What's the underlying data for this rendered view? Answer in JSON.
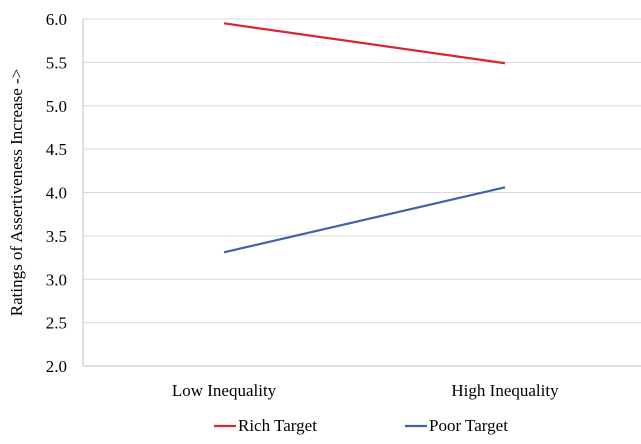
{
  "chart_data": {
    "type": "line",
    "title": "",
    "xlabel": "",
    "ylabel": "Ratings of Assertiveness Increase ->",
    "categories": [
      "Low Inequality",
      "High Inequality"
    ],
    "ylim": [
      2.0,
      6.0
    ],
    "yticks": [
      "2.0",
      "2.5",
      "3.0",
      "3.5",
      "4.0",
      "4.5",
      "5.0",
      "5.5",
      "6.0"
    ],
    "grid": true,
    "legend_position": "bottom",
    "series": [
      {
        "name": "Rich Target",
        "values": [
          5.95,
          5.49
        ],
        "color": "#d9272e"
      },
      {
        "name": "Poor Target",
        "values": [
          3.31,
          4.06
        ],
        "color": "#3f64a6"
      }
    ]
  }
}
